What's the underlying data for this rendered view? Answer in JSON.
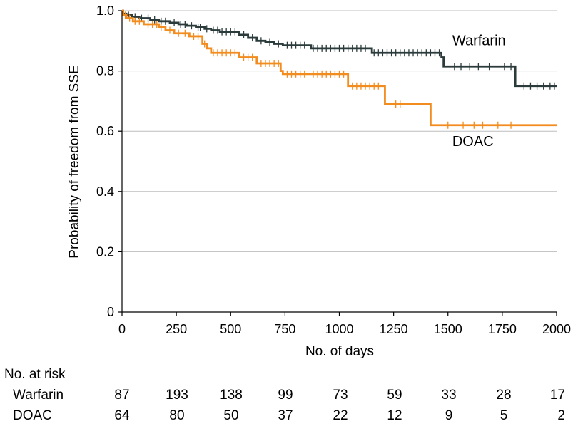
{
  "chart_data": {
    "type": "line",
    "subtype": "kaplan-meier",
    "title": "",
    "xlabel": "No. of days",
    "ylabel": "Probability of freedom from SSE",
    "xlim": [
      0,
      2000
    ],
    "ylim": [
      0,
      1.0
    ],
    "xticks": [
      0,
      250,
      500,
      750,
      1000,
      1250,
      1500,
      1750,
      2000
    ],
    "yticks": [
      {
        "value": 0,
        "label": "0"
      },
      {
        "value": 0.2,
        "label": "0.2"
      },
      {
        "value": 0.4,
        "label": "0.4"
      },
      {
        "value": 0.6,
        "label": "0.6"
      },
      {
        "value": 0.8,
        "label": "0.8"
      },
      {
        "value": 1.0,
        "label": "1.0"
      }
    ],
    "grid": "horizontal",
    "series": [
      {
        "name": "Warfarin",
        "color": "#2b3b3b",
        "label_position": {
          "x": 1520,
          "y": 0.9
        },
        "steps": [
          [
            0,
            1.0
          ],
          [
            5,
            0.99
          ],
          [
            20,
            0.985
          ],
          [
            45,
            0.98
          ],
          [
            80,
            0.975
          ],
          [
            130,
            0.97
          ],
          [
            170,
            0.965
          ],
          [
            220,
            0.96
          ],
          [
            260,
            0.955
          ],
          [
            300,
            0.95
          ],
          [
            340,
            0.945
          ],
          [
            380,
            0.94
          ],
          [
            410,
            0.935
          ],
          [
            450,
            0.93
          ],
          [
            540,
            0.92
          ],
          [
            580,
            0.91
          ],
          [
            620,
            0.9
          ],
          [
            660,
            0.895
          ],
          [
            700,
            0.89
          ],
          [
            740,
            0.885
          ],
          [
            870,
            0.875
          ],
          [
            1150,
            0.86
          ],
          [
            1470,
            0.845
          ],
          [
            1480,
            0.815
          ],
          [
            1810,
            0.75
          ],
          [
            2000,
            0.75
          ]
        ],
        "censored": [
          30,
          60,
          90,
          120,
          150,
          180,
          200,
          240,
          270,
          290,
          320,
          350,
          360,
          390,
          420,
          440,
          460,
          480,
          500,
          520,
          560,
          600,
          640,
          680,
          720,
          760,
          780,
          800,
          820,
          840,
          880,
          900,
          920,
          940,
          960,
          980,
          1000,
          1020,
          1040,
          1060,
          1080,
          1100,
          1120,
          1160,
          1180,
          1200,
          1220,
          1240,
          1260,
          1280,
          1300,
          1320,
          1340,
          1360,
          1380,
          1400,
          1420,
          1440,
          1460,
          1530,
          1560,
          1600,
          1640,
          1690,
          1760,
          1790,
          1850,
          1880,
          1910,
          1940,
          1970,
          1990
        ]
      },
      {
        "name": "DOAC",
        "color": "#f28c1e",
        "label_position": {
          "x": 1520,
          "y": 0.565
        },
        "steps": [
          [
            0,
            1.0
          ],
          [
            5,
            0.985
          ],
          [
            20,
            0.975
          ],
          [
            50,
            0.965
          ],
          [
            100,
            0.955
          ],
          [
            170,
            0.945
          ],
          [
            200,
            0.935
          ],
          [
            240,
            0.925
          ],
          [
            310,
            0.915
          ],
          [
            370,
            0.89
          ],
          [
            390,
            0.875
          ],
          [
            410,
            0.86
          ],
          [
            540,
            0.845
          ],
          [
            620,
            0.825
          ],
          [
            730,
            0.8
          ],
          [
            740,
            0.79
          ],
          [
            1040,
            0.75
          ],
          [
            1210,
            0.69
          ],
          [
            1420,
            0.62
          ],
          [
            2000,
            0.62
          ]
        ],
        "censored": [
          15,
          35,
          60,
          80,
          120,
          140,
          160,
          180,
          220,
          260,
          290,
          330,
          350,
          380,
          420,
          440,
          460,
          480,
          500,
          520,
          560,
          580,
          600,
          640,
          660,
          680,
          700,
          720,
          760,
          780,
          800,
          820,
          840,
          880,
          900,
          920,
          940,
          960,
          980,
          1000,
          1020,
          1060,
          1080,
          1100,
          1120,
          1140,
          1160,
          1180,
          1260,
          1280,
          1500,
          1570,
          1620,
          1660,
          1730,
          1790
        ]
      }
    ]
  },
  "risk_table": {
    "title": "No. at risk",
    "rows": [
      {
        "label": "Warfarin",
        "values": [
          "87",
          "193",
          "138",
          "99",
          "73",
          "59",
          "33",
          "28",
          "17"
        ]
      },
      {
        "label": "DOAC",
        "values": [
          "64",
          "80",
          "50",
          "37",
          "22",
          "12",
          "9",
          "5",
          "2"
        ]
      }
    ]
  }
}
